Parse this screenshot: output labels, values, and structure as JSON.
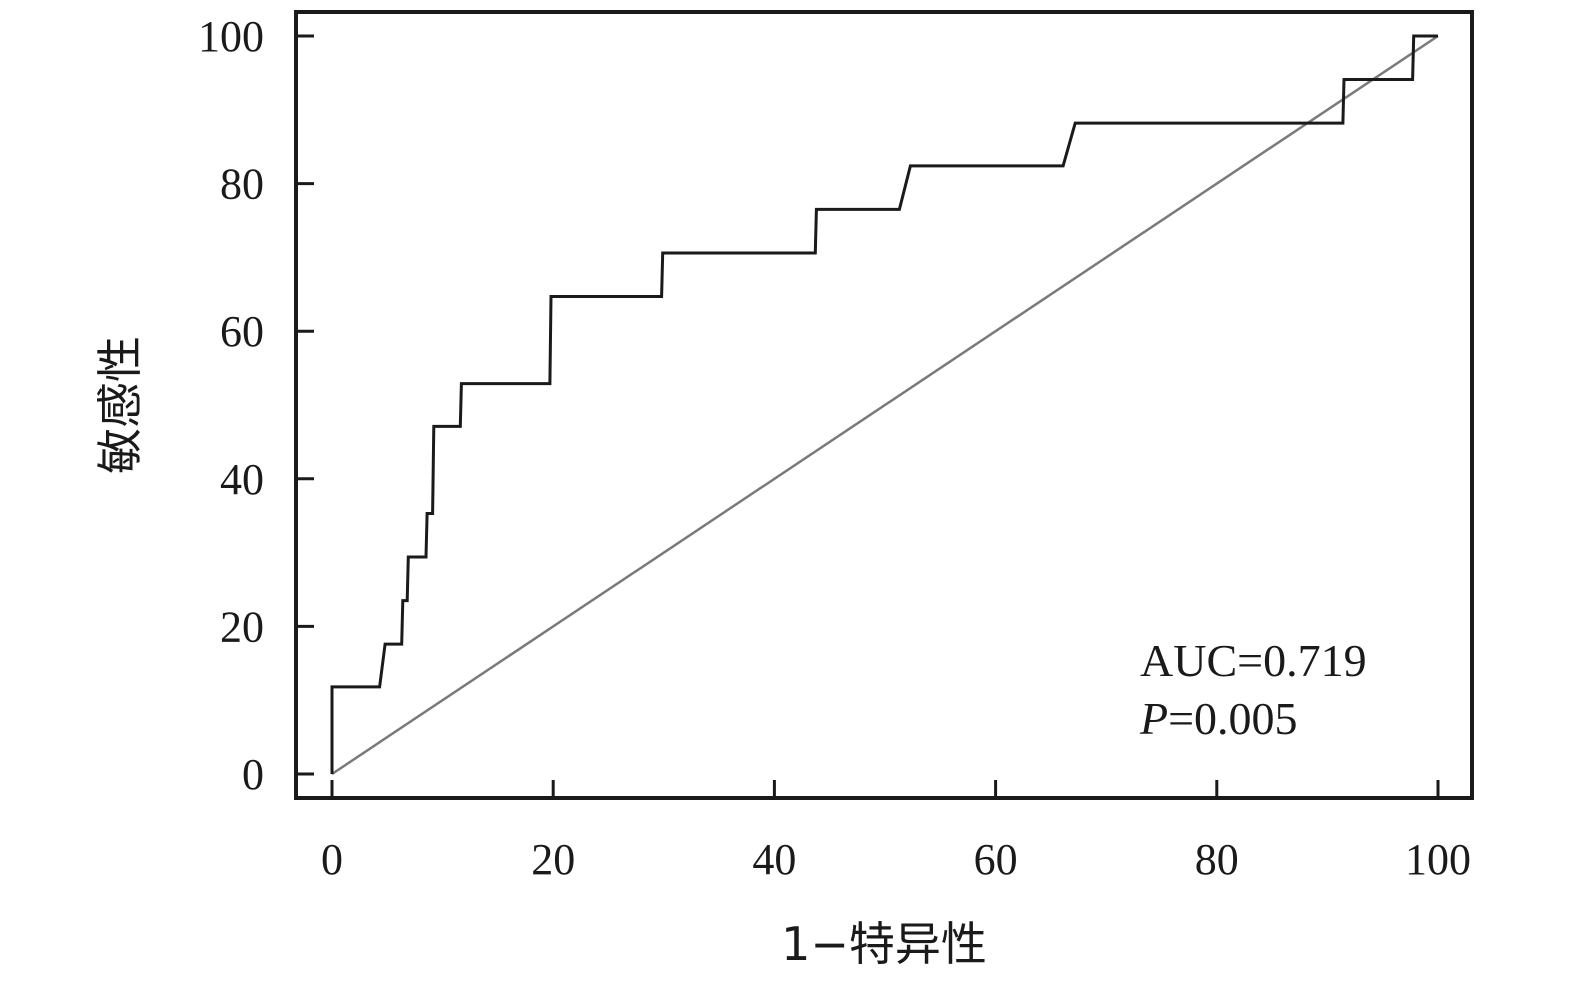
{
  "chart_data": {
    "type": "line",
    "xlabel": "1−特异性",
    "ylabel": "敏感性",
    "xlim": [
      0,
      100
    ],
    "ylim": [
      0,
      100
    ],
    "x_ticks": [
      0,
      20,
      40,
      60,
      80,
      100
    ],
    "y_ticks": [
      0,
      20,
      40,
      60,
      80,
      100
    ],
    "grid": false,
    "series": [
      {
        "role": "roc",
        "color": "#1a1a1a",
        "points": [
          [
            0,
            0
          ],
          [
            0,
            11.8
          ],
          [
            4.3,
            11.8
          ],
          [
            4.8,
            17.6
          ],
          [
            6.3,
            17.6
          ],
          [
            6.4,
            23.5
          ],
          [
            6.8,
            23.5
          ],
          [
            6.9,
            29.4
          ],
          [
            8.5,
            29.4
          ],
          [
            8.6,
            35.3
          ],
          [
            9.1,
            35.3
          ],
          [
            9.2,
            47.1
          ],
          [
            11.6,
            47.1
          ],
          [
            11.7,
            52.9
          ],
          [
            19.7,
            52.9
          ],
          [
            19.8,
            64.7
          ],
          [
            29.8,
            64.7
          ],
          [
            29.9,
            70.6
          ],
          [
            43.7,
            70.6
          ],
          [
            43.8,
            76.5
          ],
          [
            51.3,
            76.5
          ],
          [
            52.3,
            82.4
          ],
          [
            66.1,
            82.4
          ],
          [
            67.2,
            88.2
          ],
          [
            91.4,
            88.2
          ],
          [
            91.5,
            94.1
          ],
          [
            97.7,
            94.1
          ],
          [
            97.8,
            100
          ],
          [
            100,
            100
          ]
        ]
      },
      {
        "role": "reference",
        "color": "#7a7a7a",
        "points": [
          [
            0,
            0
          ],
          [
            100,
            100
          ]
        ]
      }
    ],
    "annotations": {
      "auc": "AUC=0.719",
      "p_label": "P",
      "p_value": "=0.005"
    }
  }
}
